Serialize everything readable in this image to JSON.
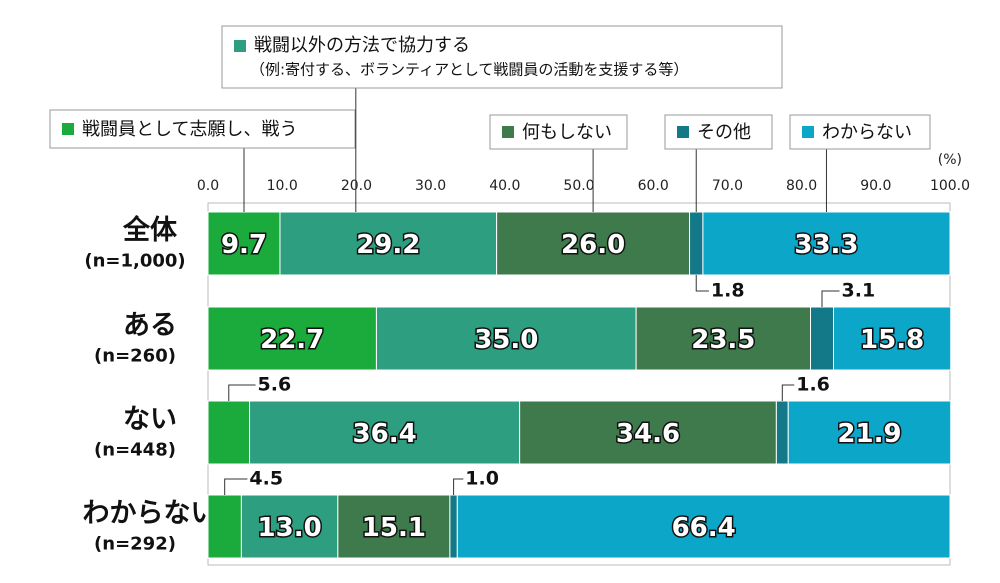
{
  "chart_data": {
    "type": "stacked_barh",
    "unit_label": "(%)",
    "categories": [
      "全体",
      "ある",
      "ない",
      "わからない"
    ],
    "sample_sizes": [
      "(n=1,000)",
      "(n=260)",
      "(n=448)",
      "(n=292)"
    ],
    "xlim": [
      0,
      100
    ],
    "xticks": [
      {
        "value": 0,
        "label": "0.0"
      },
      {
        "value": 10,
        "label": "10.0"
      },
      {
        "value": 20,
        "label": "20.0"
      },
      {
        "value": 30,
        "label": "30.0"
      },
      {
        "value": 40,
        "label": "40.0"
      },
      {
        "value": 50,
        "label": "50.0"
      },
      {
        "value": 60,
        "label": "60.0"
      },
      {
        "value": 70,
        "label": "70.0"
      },
      {
        "value": 80,
        "label": "80.0"
      },
      {
        "value": 90,
        "label": "90.0"
      },
      {
        "value": 100,
        "label": "100.0"
      }
    ],
    "series": [
      {
        "name": "戦闘員として志願し、戦う",
        "color": "#1aab3c",
        "values": [
          9.7,
          22.7,
          5.6,
          4.5
        ],
        "value_labels": [
          "9.7",
          "22.7",
          "5.6",
          "4.5"
        ]
      },
      {
        "name": "戦闘以外の方法で協力する",
        "note": "（例:寄付する、ボランティアとして戦闘員の活動を支援する等）",
        "color": "#2e9e80",
        "values": [
          29.2,
          35.0,
          36.4,
          13.0
        ],
        "value_labels": [
          "29.2",
          "35.0",
          "36.4",
          "13.0"
        ]
      },
      {
        "name": "何もしない",
        "color": "#3e7a4b",
        "values": [
          26.0,
          23.5,
          34.6,
          15.1
        ],
        "value_labels": [
          "26.0",
          "23.5",
          "34.6",
          "15.1"
        ]
      },
      {
        "name": "その他",
        "color": "#137888",
        "values": [
          1.8,
          3.1,
          1.6,
          1.0
        ],
        "value_labels": [
          "1.8",
          "3.1",
          "1.6",
          "1.0"
        ]
      },
      {
        "name": "わからない",
        "color": "#0ca6c9",
        "values": [
          33.3,
          15.8,
          21.9,
          66.4
        ],
        "value_labels": [
          "33.3",
          "15.8",
          "21.9",
          "66.4"
        ]
      }
    ]
  }
}
